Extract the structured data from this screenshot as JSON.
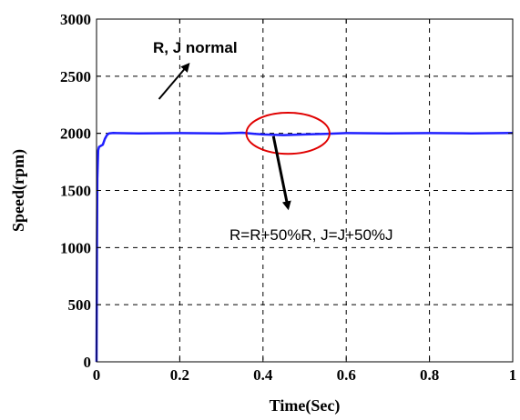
{
  "chart_data": {
    "type": "line",
    "xlabel": "Time(Sec)",
    "ylabel": "Speed(rpm)",
    "xlim": [
      0,
      1
    ],
    "ylim": [
      0,
      3000
    ],
    "x_ticks": [
      0,
      0.2,
      0.4,
      0.6,
      0.8,
      1
    ],
    "x_tick_labels": [
      "0",
      "0.2",
      "0.4",
      "0.6",
      "0.8",
      "1"
    ],
    "y_ticks": [
      0,
      500,
      1000,
      1500,
      2000,
      2500,
      3000
    ],
    "y_tick_labels": [
      "0",
      "500",
      "1000",
      "1500",
      "2000",
      "2500",
      "3000"
    ],
    "grid": true,
    "series": [
      {
        "color": "#1f1fff",
        "x": [
          0,
          0.001,
          0.002,
          0.004,
          0.006,
          0.01,
          0.015,
          0.02,
          0.025,
          0.03,
          0.04,
          0.1,
          0.2,
          0.3,
          0.35,
          0.38,
          0.4,
          0.45,
          0.5,
          0.55,
          0.58,
          0.6,
          0.7,
          0.8,
          0.9,
          1.0
        ],
        "y": [
          0,
          1050,
          1600,
          1850,
          1880,
          1890,
          1900,
          1950,
          1985,
          2000,
          2003,
          2000,
          2002,
          2000,
          2005,
          1995,
          1990,
          1985,
          1990,
          1995,
          2000,
          2002,
          2000,
          2002,
          2000,
          2003
        ]
      }
    ],
    "annotations": [
      {
        "text": "R, J normal",
        "from": [
          0.15,
          2300
        ],
        "to": [
          0.22,
          2600
        ]
      },
      {
        "text": "R=R+50%R, J=J+50%J",
        "from": [
          0.425,
          1975
        ],
        "to": [
          0.46,
          1350
        ]
      }
    ],
    "highlight_ellipse": {
      "cx": 0.46,
      "cy": 2000,
      "rx": 0.1,
      "ry": 180,
      "color": "#e00000"
    }
  }
}
